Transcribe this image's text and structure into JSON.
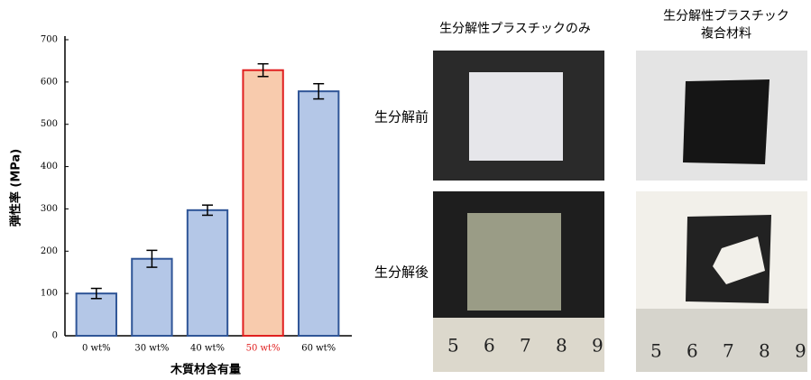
{
  "chart_data": {
    "type": "bar",
    "x_label": "木質材含有量",
    "y_label": "弾性率 (MPa)",
    "categories": [
      "0 wt%",
      "30 wt%",
      "40 wt%",
      "50 wt%",
      "60 wt%"
    ],
    "values": [
      100,
      182,
      297,
      628,
      578
    ],
    "errors": [
      12,
      20,
      12,
      15,
      18
    ],
    "colors": [
      "#b4c7e7",
      "#b4c7e7",
      "#b4c7e7",
      "#f8cbad",
      "#b4c7e7"
    ],
    "edge_colors": [
      "#2f5597",
      "#2f5597",
      "#2f5597",
      "#e02020",
      "#2f5597"
    ],
    "category_label_colors": [
      "#000000",
      "#000000",
      "#000000",
      "#e02020",
      "#000000"
    ],
    "ylim": [
      0,
      700
    ],
    "yticks": [
      0,
      100,
      200,
      300,
      400,
      500,
      600,
      700
    ]
  },
  "photos": {
    "columns": [
      "生分解性プラスチックのみ",
      "生分解性プラスチック\n複合材料"
    ],
    "rows": [
      "生分解前",
      "生分解後"
    ],
    "ruler_numbers": [
      "5",
      "6",
      "7",
      "8",
      "9"
    ]
  }
}
